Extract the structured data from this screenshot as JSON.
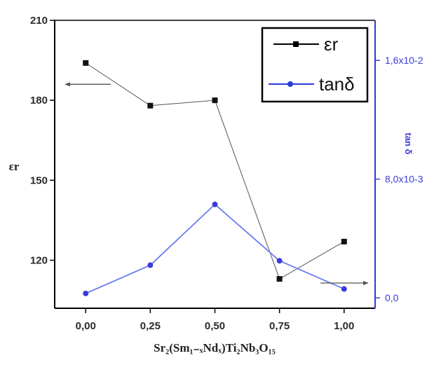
{
  "chart_data": {
    "type": "line",
    "x": [
      0.0,
      0.25,
      0.5,
      0.75,
      1.0
    ],
    "x_tick_labels": [
      "0,00",
      "0,25",
      "0,50",
      "0,75",
      "1,00"
    ],
    "xlim": [
      -0.12,
      1.12
    ],
    "xlabel": "Sr₂(Sm₁₋ₓNdₓ)Ti₂Nb₃O₁₅",
    "left_axis": {
      "label": "εr",
      "ylim": [
        102,
        210
      ],
      "ticks": [
        120,
        150,
        180,
        210
      ],
      "tick_labels": [
        "120",
        "150",
        "180",
        "210"
      ],
      "color": "#000000"
    },
    "right_axis": {
      "label": "tan δ",
      "ylim": [
        -0.0007,
        0.0187
      ],
      "ticks": [
        0.0,
        0.008,
        0.016
      ],
      "tick_labels": [
        "0,0",
        "8,0x10-3",
        "1,6x10-2"
      ],
      "color": "#3b3bd9"
    },
    "series": [
      {
        "name": "εr",
        "axis": "left",
        "color": "#555555",
        "marker": "square",
        "values": [
          194,
          178,
          180,
          113,
          127
        ]
      },
      {
        "name": "tanδ",
        "axis": "right",
        "color": "#6b7cf0",
        "marker": "circle",
        "values": [
          0.0003,
          0.0022,
          0.0063,
          0.0025,
          0.0006
        ]
      }
    ],
    "legend": {
      "position": "top-right",
      "entries": [
        {
          "label": "εr",
          "color": "#000000"
        },
        {
          "label": "tanδ",
          "color": "#2b3bd9"
        }
      ]
    },
    "annotations": [
      {
        "type": "arrow",
        "points_to": "left axis",
        "near_series": "εr"
      },
      {
        "type": "arrow",
        "points_to": "right axis",
        "near_series": "tanδ"
      }
    ],
    "grid": false
  }
}
